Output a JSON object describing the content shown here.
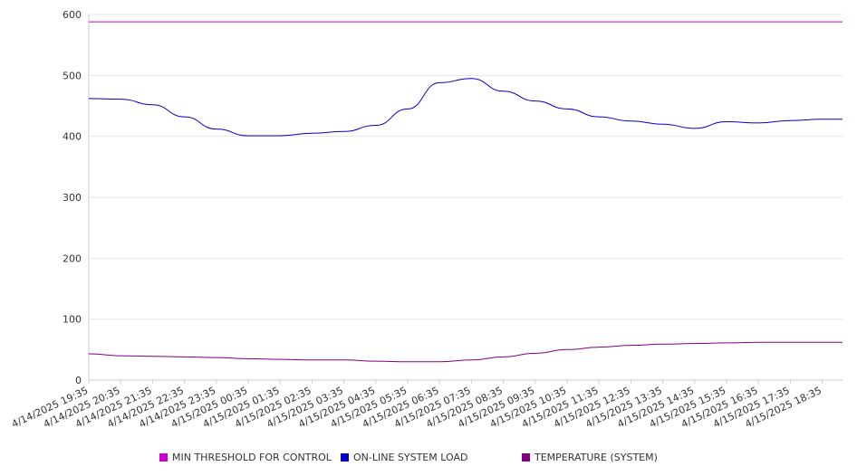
{
  "chart_data": {
    "type": "line",
    "title": "",
    "xlabel": "",
    "ylabel": "",
    "ylim": [
      0,
      600
    ],
    "yticks": [
      0,
      100,
      200,
      300,
      400,
      500,
      600
    ],
    "grid": "horizontal",
    "legend_position": "bottom",
    "categories": [
      "4/14/2025 19:35",
      "4/14/2025 20:35",
      "4/14/2025 21:35",
      "4/14/2025 22:35",
      "4/14/2025 23:35",
      "4/15/2025 00:35",
      "4/15/2025 01:35",
      "4/15/2025 02:35",
      "4/15/2025 03:35",
      "4/15/2025 04:35",
      "4/15/2025 05:35",
      "4/15/2025 06:35",
      "4/15/2025 07:35",
      "4/15/2025 08:35",
      "4/15/2025 09:35",
      "4/15/2025 10:35",
      "4/15/2025 11:35",
      "4/15/2025 12:35",
      "4/15/2025 13:35",
      "4/15/2025 14:35",
      "4/15/2025 15:35",
      "4/15/2025 16:35",
      "4/15/2025 17:35",
      "4/15/2025 18:35"
    ],
    "series": [
      {
        "name": "MIN THRESHOLD FOR CONTROL",
        "color": "#cc00cc",
        "values": [
          588,
          588,
          588,
          588,
          588,
          588,
          588,
          588,
          588,
          588,
          588,
          588,
          588,
          588,
          588,
          588,
          588,
          588,
          588,
          588,
          588,
          588,
          588,
          588
        ]
      },
      {
        "name": "ON-LINE SYSTEM LOAD",
        "color": "#0000cc",
        "values": [
          462,
          461,
          452,
          432,
          412,
          401,
          401,
          405,
          408,
          418,
          445,
          488,
          495,
          474,
          458,
          445,
          432,
          425,
          420,
          413,
          424,
          422,
          426,
          428
        ]
      },
      {
        "name": "TEMPERATURE (SYSTEM)",
        "color": "#800080",
        "values": [
          43,
          40,
          39,
          38,
          37,
          35,
          34,
          33,
          33,
          31,
          30,
          30,
          33,
          38,
          44,
          50,
          54,
          57,
          59,
          60,
          61,
          62,
          62,
          62
        ]
      }
    ]
  }
}
